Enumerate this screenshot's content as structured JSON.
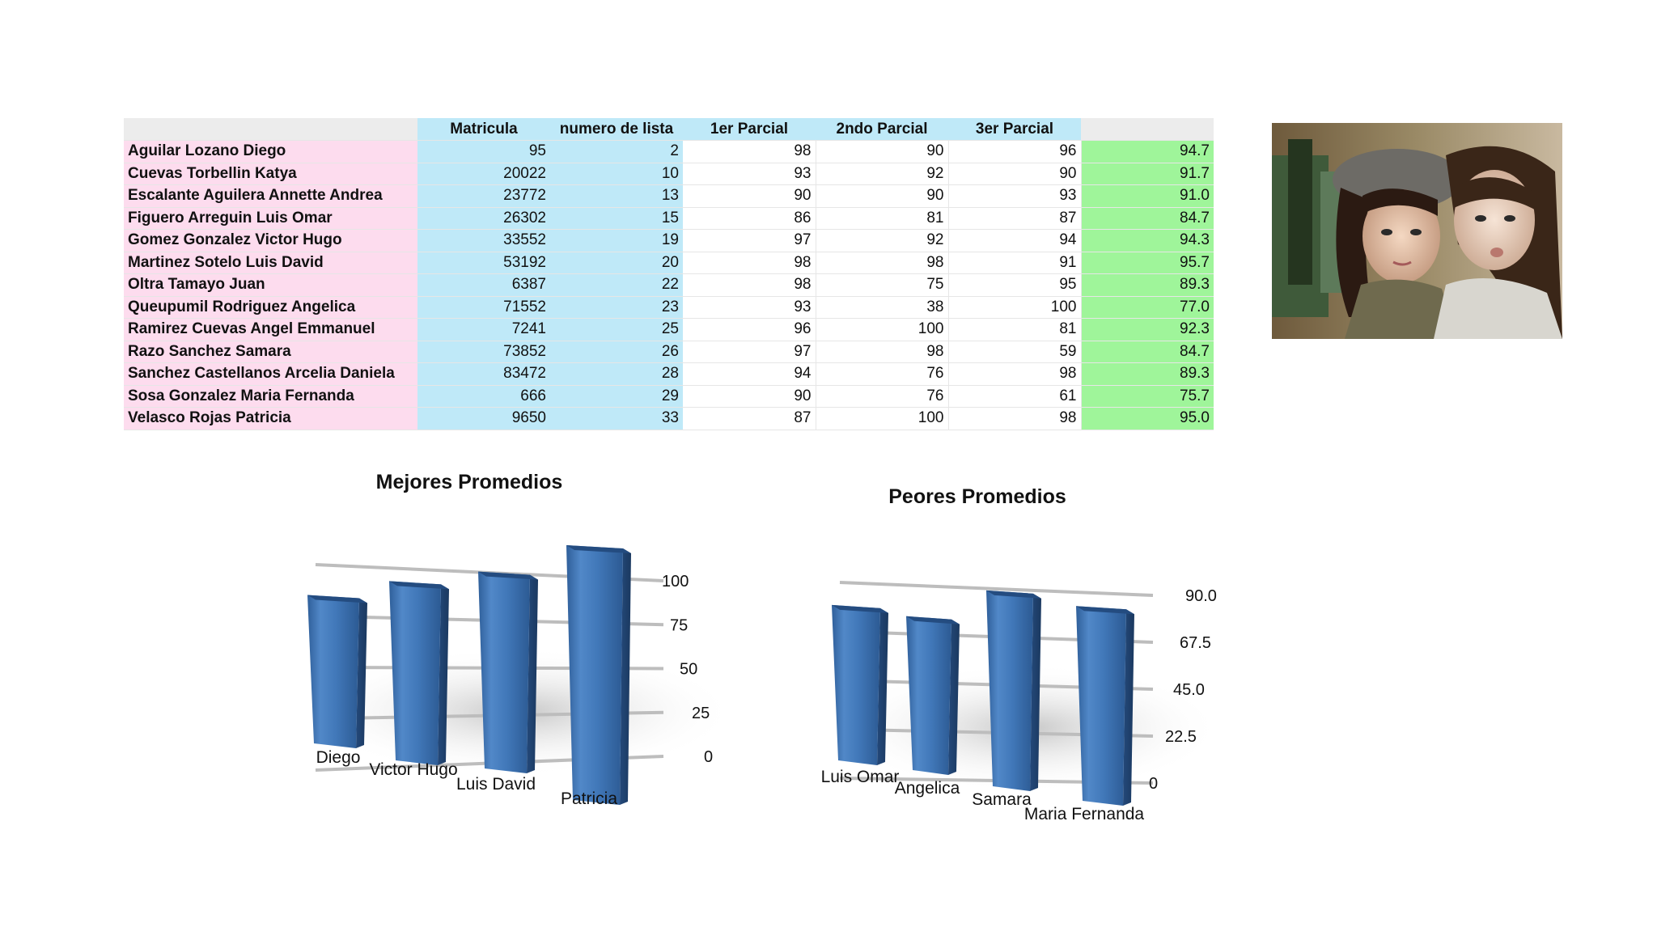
{
  "table": {
    "headers": [
      "",
      "Matricula",
      "numero de lista",
      "1er Parcial",
      "2ndo Parcial",
      "3er Parcial",
      ""
    ],
    "rows": [
      [
        "Aguilar Lozano Diego",
        "95",
        "2",
        "98",
        "90",
        "96",
        "94.7"
      ],
      [
        "Cuevas Torbellin Katya",
        "20022",
        "10",
        "93",
        "92",
        "90",
        "91.7"
      ],
      [
        "Escalante Aguilera Annette Andrea",
        "23772",
        "13",
        "90",
        "90",
        "93",
        "91.0"
      ],
      [
        "Figuero Arreguin Luis Omar",
        "26302",
        "15",
        "86",
        "81",
        "87",
        "84.7"
      ],
      [
        "Gomez Gonzalez Victor Hugo",
        "33552",
        "19",
        "97",
        "92",
        "94",
        "94.3"
      ],
      [
        "Martinez Sotelo Luis David",
        "53192",
        "20",
        "98",
        "98",
        "91",
        "95.7"
      ],
      [
        "Oltra Tamayo Juan",
        "6387",
        "22",
        "98",
        "75",
        "95",
        "89.3"
      ],
      [
        "Queupumil Rodriguez Angelica",
        "71552",
        "23",
        "93",
        "38",
        "100",
        "77.0"
      ],
      [
        "Ramirez Cuevas Angel Emmanuel",
        "7241",
        "25",
        "96",
        "100",
        "81",
        "92.3"
      ],
      [
        "Razo Sanchez Samara",
        "73852",
        "26",
        "97",
        "98",
        "59",
        "84.7"
      ],
      [
        "Sanchez Castellanos Arcelia Daniela",
        "83472",
        "28",
        "94",
        "76",
        "98",
        "89.3"
      ],
      [
        "Sosa Gonzalez Maria Fernanda",
        "666",
        "29",
        "90",
        "76",
        "61",
        "75.7"
      ],
      [
        "Velasco Rojas Patricia",
        "9650",
        "33",
        "87",
        "100",
        "98",
        "95.0"
      ]
    ]
  },
  "colors": {
    "name_col": "#fddcee",
    "blue_col": "#bfe9f8",
    "green_col": "#9ff59a",
    "bar": "#3f74b4"
  },
  "chart_data": [
    {
      "type": "bar",
      "title": "Mejores Promedios",
      "categories": [
        "Diego",
        "Victor Hugo",
        "Luis David",
        "Patricia"
      ],
      "values": [
        94.7,
        94.3,
        95.7,
        95.0
      ],
      "ylim": [
        0,
        100
      ],
      "yticks": [
        "0",
        "25",
        "50",
        "75",
        "100"
      ],
      "xlabel": "",
      "ylabel": ""
    },
    {
      "type": "bar",
      "title": "Peores Promedios",
      "categories": [
        "Luis Omar",
        "Angelica",
        "Samara",
        "Maria Fernanda"
      ],
      "values": [
        84.7,
        77.0,
        84.7,
        75.7
      ],
      "ylim": [
        0,
        90
      ],
      "yticks": [
        "0",
        "22.5",
        "45.0",
        "67.5",
        "90.0"
      ],
      "xlabel": "",
      "ylabel": ""
    }
  ]
}
